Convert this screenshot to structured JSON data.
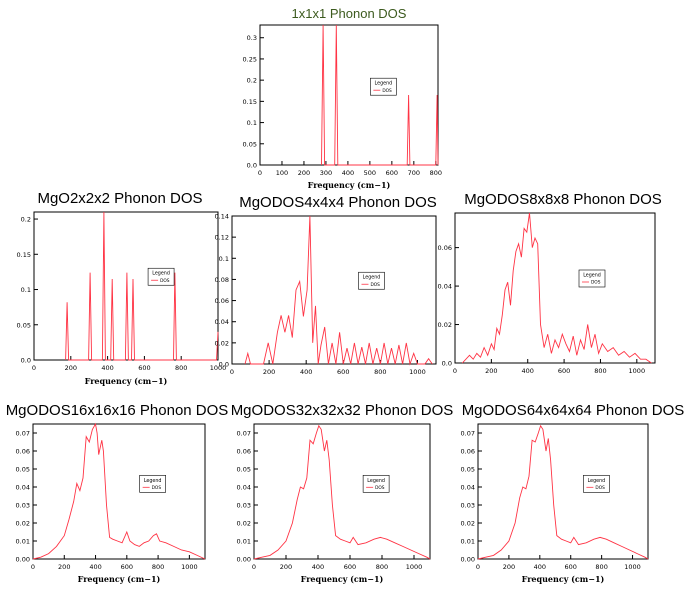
{
  "chart_data": [
    {
      "type": "line",
      "title": "1x1x1 Phonon DOS",
      "title_color": "#3c5a1e",
      "xlabel": "Frequency (cm−1)",
      "ylabel": "",
      "xlim": [
        0,
        810
      ],
      "ylim": [
        0,
        0.33
      ],
      "xticks": [
        0,
        100,
        200,
        300,
        400,
        500,
        600,
        700,
        800
      ],
      "yticks": [
        0.0,
        0.05,
        0.1,
        0.15,
        0.2,
        0.25,
        0.3
      ],
      "ytick_labels": [
        "0.0",
        "0.05",
        "0.1",
        "0.15",
        "0.2",
        "0.25",
        "0.3"
      ],
      "legend": {
        "title": "Legend",
        "entries": [
          "DOS"
        ],
        "placement": "center-right"
      },
      "series": [
        {
          "name": "DOS",
          "color": "#ff3344",
          "x": [
            280,
            287,
            294,
            340,
            347,
            354,
            670,
            676,
            682,
            800,
            806,
            812
          ],
          "y": [
            0,
            0.33,
            0,
            0,
            0.33,
            0,
            0,
            0.165,
            0,
            0,
            0.165,
            0
          ]
        }
      ]
    },
    {
      "type": "line",
      "title": "MgO2x2x2 Phonon DOS",
      "title_color": "#000000",
      "xlabel": "Frequency (cm−1)",
      "ylabel": "",
      "xlim": [
        0,
        1000
      ],
      "ylim": [
        0,
        0.21
      ],
      "xticks": [
        0,
        200,
        400,
        600,
        800,
        1000
      ],
      "yticks": [
        0.0,
        0.05,
        0.1,
        0.15,
        0.2
      ],
      "ytick_labels": [
        "0.0",
        "0.05",
        "0.1",
        "0.15",
        "0.2"
      ],
      "legend": {
        "title": "Legend",
        "entries": [
          "DOS"
        ],
        "placement": "center-right"
      },
      "series": [
        {
          "name": "DOS",
          "color": "#ff3344",
          "x": [
            172,
            180,
            188,
            297,
            305,
            313,
            372,
            380,
            388,
            417,
            425,
            433,
            497,
            505,
            513,
            530,
            538,
            546,
            758,
            766,
            774,
            992,
            1000
          ],
          "y": [
            0,
            0.082,
            0,
            0,
            0.124,
            0,
            0,
            0.21,
            0,
            0,
            0.115,
            0,
            0,
            0.124,
            0,
            0,
            0.115,
            0,
            0,
            0.124,
            0,
            0,
            0.04
          ]
        }
      ]
    },
    {
      "type": "line",
      "title": "MgODOS4x4x4 Phonon DOS",
      "title_color": "#000000",
      "xlabel": "",
      "ylabel": "",
      "xlim": [
        0,
        1100
      ],
      "ylim": [
        0,
        0.14
      ],
      "xticks": [
        0,
        200,
        400,
        600,
        800,
        1000
      ],
      "yticks": [
        0.0,
        0.02,
        0.04,
        0.06,
        0.08,
        0.1,
        0.12,
        0.14
      ],
      "ytick_labels": [
        "0.0",
        "0.02",
        "0.04",
        "0.06",
        "0.08",
        "0.1",
        "0.12",
        "0.14"
      ],
      "legend": {
        "title": "Legend",
        "entries": [
          "DOS"
        ],
        "placement": "center-right"
      },
      "series": [
        {
          "name": "DOS",
          "color": "#ff3344",
          "x": [
            70,
            85,
            100,
            170,
            195,
            220,
            245,
            265,
            285,
            305,
            325,
            345,
            365,
            385,
            405,
            420,
            435,
            450,
            465,
            480,
            500,
            520,
            540,
            560,
            580,
            600,
            620,
            640,
            660,
            680,
            700,
            720,
            740,
            760,
            780,
            800,
            820,
            840,
            860,
            880,
            900,
            920,
            940,
            960,
            980,
            1000,
            1040,
            1060,
            1080
          ],
          "y": [
            0,
            0.01,
            0,
            0,
            0.02,
            0,
            0.03,
            0.046,
            0.03,
            0.046,
            0.025,
            0.07,
            0.078,
            0.045,
            0.07,
            0.14,
            0.02,
            0.055,
            0,
            0.018,
            0.035,
            0,
            0.02,
            0,
            0.03,
            0,
            0.015,
            0,
            0.02,
            0,
            0.016,
            0,
            0.02,
            0,
            0.015,
            0,
            0.02,
            0,
            0.015,
            0,
            0.018,
            0,
            0.02,
            0,
            0.01,
            0,
            0,
            0.005,
            0
          ]
        }
      ]
    },
    {
      "type": "line",
      "title": "MgODOS8x8x8 Phonon DOS",
      "title_color": "#000000",
      "xlabel": "",
      "ylabel": "",
      "xlim": [
        0,
        1100
      ],
      "ylim": [
        0,
        0.078
      ],
      "xticks": [
        0,
        200,
        400,
        600,
        800,
        1000
      ],
      "yticks": [
        0.0,
        0.02,
        0.04,
        0.06
      ],
      "ytick_labels": [
        "0.0",
        "0.02",
        "0.04",
        "0.06"
      ],
      "legend": {
        "title": "Legend",
        "entries": [
          "DOS"
        ],
        "placement": "center-right"
      },
      "series": [
        {
          "name": "DOS",
          "color": "#ff3344",
          "x": [
            40,
            60,
            80,
            100,
            120,
            140,
            160,
            180,
            200,
            215,
            230,
            245,
            260,
            275,
            290,
            305,
            320,
            335,
            350,
            365,
            380,
            395,
            410,
            425,
            440,
            455,
            470,
            490,
            510,
            530,
            550,
            570,
            590,
            610,
            630,
            650,
            670,
            690,
            710,
            730,
            750,
            770,
            790,
            810,
            840,
            870,
            900,
            930,
            960,
            990,
            1020,
            1050,
            1080
          ],
          "y": [
            0,
            0.002,
            0.004,
            0.002,
            0.005,
            0.003,
            0.008,
            0.004,
            0.01,
            0.007,
            0.018,
            0.015,
            0.025,
            0.038,
            0.042,
            0.03,
            0.048,
            0.058,
            0.062,
            0.055,
            0.07,
            0.068,
            0.078,
            0.06,
            0.065,
            0.062,
            0.02,
            0.008,
            0.015,
            0.005,
            0.012,
            0.008,
            0.015,
            0.01,
            0.006,
            0.014,
            0.004,
            0.012,
            0.007,
            0.02,
            0.008,
            0.015,
            0.005,
            0.01,
            0.006,
            0.008,
            0.004,
            0.006,
            0.003,
            0.005,
            0.002,
            0.002,
            0
          ]
        }
      ]
    },
    {
      "type": "line",
      "title": "MgODOS16x16x16 Phonon DOS",
      "title_color": "#000000",
      "xlabel": "Frequency (cm−1)",
      "ylabel": "",
      "xlim": [
        0,
        1100
      ],
      "ylim": [
        0,
        0.075
      ],
      "xticks": [
        0,
        200,
        400,
        600,
        800,
        1000
      ],
      "yticks": [
        0.0,
        0.01,
        0.02,
        0.03,
        0.04,
        0.05,
        0.06,
        0.07
      ],
      "ytick_labels": [
        "0.00",
        "0.01",
        "0.02",
        "0.03",
        "0.04",
        "0.05",
        "0.06",
        "0.07"
      ],
      "legend": {
        "title": "Legend",
        "entries": [
          "DOS"
        ],
        "placement": "center-right"
      },
      "series": [
        {
          "name": "DOS",
          "color": "#ff3344",
          "x": [
            0,
            50,
            100,
            150,
            200,
            230,
            260,
            280,
            300,
            320,
            340,
            360,
            380,
            400,
            410,
            420,
            440,
            450,
            470,
            490,
            510,
            540,
            570,
            600,
            620,
            650,
            680,
            710,
            740,
            770,
            790,
            810,
            850,
            900,
            950,
            1000,
            1050,
            1100
          ],
          "y": [
            0,
            0.001,
            0.003,
            0.007,
            0.013,
            0.022,
            0.032,
            0.042,
            0.038,
            0.045,
            0.068,
            0.065,
            0.072,
            0.075,
            0.07,
            0.058,
            0.066,
            0.06,
            0.03,
            0.012,
            0.011,
            0.01,
            0.009,
            0.015,
            0.01,
            0.008,
            0.007,
            0.009,
            0.01,
            0.013,
            0.014,
            0.01,
            0.009,
            0.007,
            0.005,
            0.004,
            0.002,
            0
          ]
        }
      ]
    },
    {
      "type": "line",
      "title": "MgODOS32x32x32 Phonon DOS",
      "title_color": "#000000",
      "xlabel": "Frequency (cm−1)",
      "ylabel": "",
      "xlim": [
        0,
        1100
      ],
      "ylim": [
        0,
        0.075
      ],
      "xticks": [
        0,
        200,
        400,
        600,
        800,
        1000
      ],
      "yticks": [
        0.0,
        0.01,
        0.02,
        0.03,
        0.04,
        0.05,
        0.06,
        0.07
      ],
      "ytick_labels": [
        "0.00",
        "0.01",
        "0.02",
        "0.03",
        "0.04",
        "0.05",
        "0.06",
        "0.07"
      ],
      "legend": {
        "title": "Legend",
        "entries": [
          "DOS"
        ],
        "placement": "center-right"
      },
      "series": [
        {
          "name": "DOS",
          "color": "#ff3344",
          "x": [
            0,
            50,
            100,
            150,
            200,
            240,
            270,
            290,
            310,
            330,
            350,
            370,
            390,
            405,
            420,
            440,
            455,
            470,
            490,
            510,
            540,
            570,
            600,
            620,
            650,
            700,
            750,
            790,
            830,
            880,
            930,
            980,
            1030,
            1080,
            1100
          ],
          "y": [
            0,
            0.001,
            0.002,
            0.005,
            0.01,
            0.02,
            0.033,
            0.04,
            0.039,
            0.045,
            0.066,
            0.064,
            0.07,
            0.074,
            0.072,
            0.06,
            0.066,
            0.055,
            0.03,
            0.013,
            0.011,
            0.01,
            0.009,
            0.012,
            0.008,
            0.009,
            0.011,
            0.012,
            0.011,
            0.009,
            0.007,
            0.005,
            0.003,
            0.001,
            0
          ]
        }
      ]
    },
    {
      "type": "line",
      "title": "MgODOS64x64x64 Phonon DOS",
      "title_color": "#000000",
      "xlabel": "Frequency (cm−1)",
      "ylabel": "",
      "xlim": [
        0,
        1100
      ],
      "ylim": [
        0,
        0.075
      ],
      "xticks": [
        0,
        200,
        400,
        600,
        800,
        1000
      ],
      "yticks": [
        0.0,
        0.01,
        0.02,
        0.03,
        0.04,
        0.05,
        0.06,
        0.07
      ],
      "ytick_labels": [
        "0.00",
        "0.01",
        "0.02",
        "0.03",
        "0.04",
        "0.05",
        "0.06",
        "0.07"
      ],
      "legend": {
        "title": "Legend",
        "entries": [
          "DOS"
        ],
        "placement": "center-right"
      },
      "series": [
        {
          "name": "DOS",
          "color": "#ff3344",
          "x": [
            0,
            50,
            100,
            150,
            200,
            240,
            270,
            290,
            310,
            330,
            350,
            370,
            390,
            405,
            420,
            440,
            455,
            470,
            490,
            510,
            540,
            570,
            600,
            620,
            650,
            700,
            750,
            790,
            830,
            880,
            930,
            980,
            1030,
            1080,
            1100
          ],
          "y": [
            0,
            0.001,
            0.002,
            0.005,
            0.01,
            0.02,
            0.034,
            0.04,
            0.039,
            0.046,
            0.066,
            0.065,
            0.07,
            0.074,
            0.072,
            0.06,
            0.067,
            0.055,
            0.03,
            0.013,
            0.011,
            0.01,
            0.009,
            0.012,
            0.008,
            0.009,
            0.011,
            0.012,
            0.011,
            0.009,
            0.007,
            0.005,
            0.003,
            0.001,
            0
          ]
        }
      ]
    }
  ]
}
